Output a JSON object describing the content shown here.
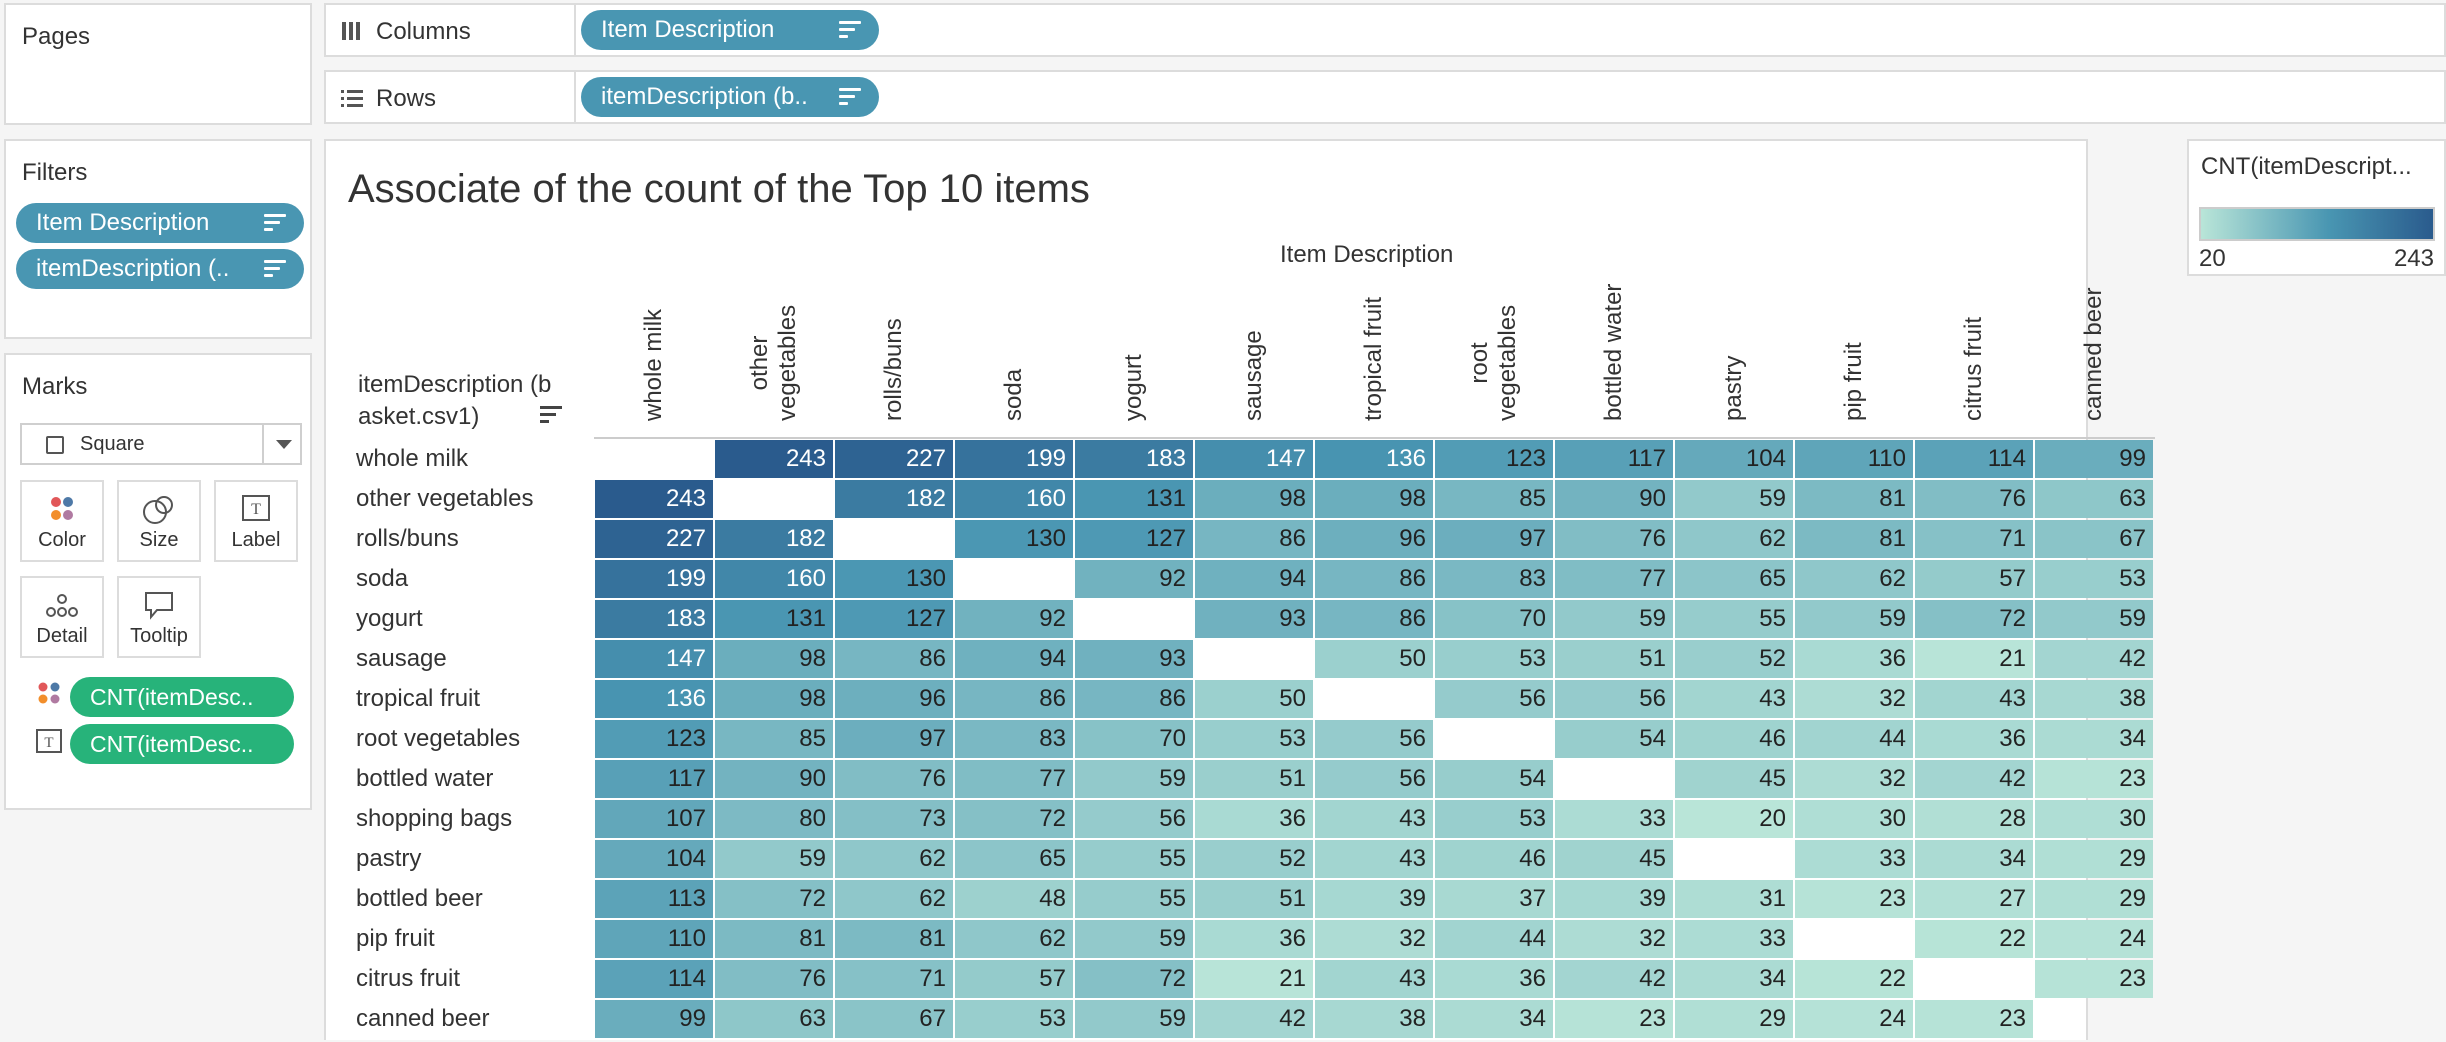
{
  "pages": {
    "title": "Pages"
  },
  "columns_shelf": {
    "label": "Columns",
    "pill": "Item Description"
  },
  "rows_shelf": {
    "label": "Rows",
    "pill": "itemDescription (b.."
  },
  "filters": {
    "title": "Filters",
    "pills": [
      "Item Description",
      "itemDescription (.."
    ]
  },
  "marks": {
    "title": "Marks",
    "mark_type": "Square",
    "buttons": [
      "Color",
      "Size",
      "Label",
      "Detail",
      "Tooltip"
    ],
    "fields": [
      "CNT(itemDesc..",
      "CNT(itemDesc.."
    ]
  },
  "legend": {
    "title": "CNT(itemDescript...",
    "min_label": "20",
    "max_label": "243",
    "colors": [
      "#b9e5d8",
      "#4996b2",
      "#2a5b8d"
    ]
  },
  "chart_data": {
    "type": "heatmap",
    "title": "Associate of the count of the Top 10 items",
    "xlabel": "Item Description",
    "ylabel": "itemDescription (basket.csv1)",
    "columns": [
      "whole milk",
      "other vegetables",
      "rolls/buns",
      "soda",
      "yogurt",
      "sausage",
      "tropical fruit",
      "root vegetables",
      "bottled water",
      "pastry",
      "pip fruit",
      "citrus fruit",
      "canned beer"
    ],
    "rows": [
      "whole milk",
      "other vegetables",
      "rolls/buns",
      "soda",
      "yogurt",
      "sausage",
      "tropical fruit",
      "root vegetables",
      "bottled water",
      "shopping bags",
      "pastry",
      "bottled beer",
      "pip fruit",
      "citrus fruit",
      "canned beer"
    ],
    "values": [
      [
        null,
        243,
        227,
        199,
        183,
        147,
        136,
        123,
        117,
        104,
        110,
        114,
        99
      ],
      [
        243,
        null,
        182,
        160,
        131,
        98,
        98,
        85,
        90,
        59,
        81,
        76,
        63
      ],
      [
        227,
        182,
        null,
        130,
        127,
        86,
        96,
        97,
        76,
        62,
        81,
        71,
        67
      ],
      [
        199,
        160,
        130,
        null,
        92,
        94,
        86,
        83,
        77,
        65,
        62,
        57,
        53
      ],
      [
        183,
        131,
        127,
        92,
        null,
        93,
        86,
        70,
        59,
        55,
        59,
        72,
        59
      ],
      [
        147,
        98,
        86,
        94,
        93,
        null,
        50,
        53,
        51,
        52,
        36,
        21,
        42
      ],
      [
        136,
        98,
        96,
        86,
        86,
        50,
        null,
        56,
        56,
        43,
        32,
        43,
        38
      ],
      [
        123,
        85,
        97,
        83,
        70,
        53,
        56,
        null,
        54,
        46,
        44,
        36,
        34
      ],
      [
        117,
        90,
        76,
        77,
        59,
        51,
        56,
        54,
        null,
        45,
        32,
        42,
        23
      ],
      [
        107,
        80,
        73,
        72,
        56,
        36,
        43,
        53,
        33,
        20,
        30,
        28,
        30
      ],
      [
        104,
        59,
        62,
        65,
        55,
        52,
        43,
        46,
        45,
        null,
        33,
        34,
        29
      ],
      [
        113,
        72,
        62,
        48,
        55,
        51,
        39,
        37,
        39,
        31,
        23,
        27,
        29
      ],
      [
        110,
        81,
        81,
        62,
        59,
        36,
        32,
        44,
        32,
        33,
        null,
        22,
        24
      ],
      [
        114,
        76,
        71,
        57,
        72,
        21,
        43,
        36,
        42,
        34,
        22,
        null,
        23
      ],
      [
        99,
        63,
        67,
        53,
        59,
        42,
        38,
        34,
        23,
        29,
        24,
        23,
        null
      ]
    ],
    "color_range": [
      20,
      243
    ]
  }
}
